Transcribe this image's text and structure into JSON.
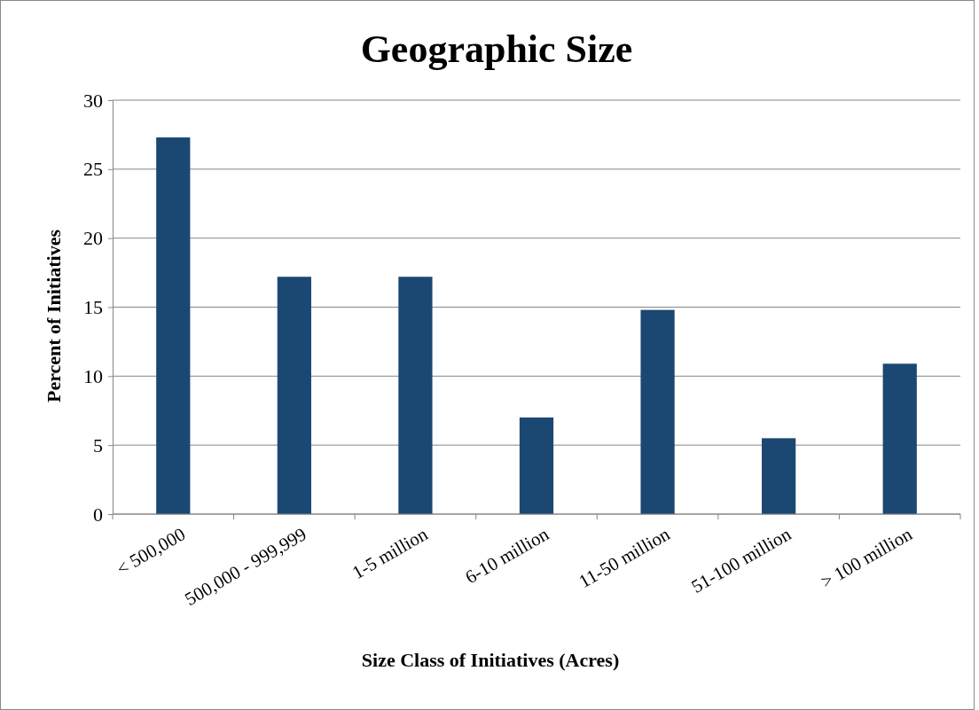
{
  "chart_data": {
    "type": "bar",
    "title": "Geographic Size",
    "xlabel": "Size Class of Initiatives (Acres)",
    "ylabel": "Percent of Initiatives",
    "categories": [
      "< 500,000",
      "500,000 - 999,999",
      "1-5 million",
      "6-10 million",
      "11-50 million",
      "51-100 million",
      "> 100 million"
    ],
    "values": [
      27.3,
      17.2,
      17.2,
      7.0,
      14.8,
      5.5,
      10.9
    ],
    "color": "#1b4872",
    "ylim": [
      0,
      30
    ],
    "yticks": [
      0,
      5,
      10,
      15,
      20,
      25,
      30
    ],
    "grid": "y"
  }
}
